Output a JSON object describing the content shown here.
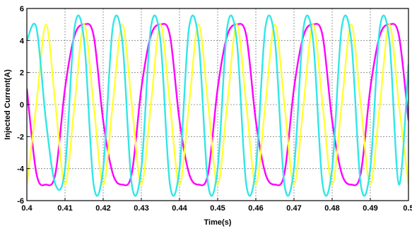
{
  "chart_data": {
    "type": "line",
    "xlabel": "Time(s)",
    "ylabel": "Injected Current(A)",
    "xlim": [
      0.4,
      0.5
    ],
    "ylim": [
      -6,
      6
    ],
    "x_ticks": [
      0.4,
      0.41,
      0.42,
      0.43,
      0.44,
      0.45,
      0.46,
      0.47,
      0.48,
      0.49,
      0.5
    ],
    "x_tick_labels": [
      "0.4",
      "0.41",
      "0.42",
      "0.43",
      "0.44",
      "0.45",
      "0.46",
      "0.47",
      "0.48",
      "0.49",
      "0.5"
    ],
    "y_ticks": [
      -6,
      -4,
      -2,
      0,
      2,
      4,
      6
    ],
    "y_tick_labels": [
      "-6",
      "-4",
      "-2",
      "0",
      "2",
      "4",
      "6"
    ],
    "grid": true,
    "background_color": "#ffffff",
    "series": [
      {
        "color": "#ff00ff",
        "x": [
          0.4,
          0.4025,
          0.405,
          0.4075,
          0.41,
          0.4125,
          0.415,
          0.4175,
          0.42,
          0.4225,
          0.425,
          0.4275,
          0.43,
          0.4325,
          0.435,
          0.4375,
          0.44,
          0.4425,
          0.445,
          0.4475,
          0.45,
          0.4525,
          0.455,
          0.4575,
          0.46,
          0.4625,
          0.465,
          0.4675,
          0.47,
          0.4725,
          0.475,
          0.4775,
          0.48,
          0.4825,
          0.485,
          0.4875,
          0.49,
          0.4925,
          0.495,
          0.4975,
          0.5
        ],
        "y": [
          1.0,
          -4.3,
          -5.0,
          -4.3,
          1.0,
          4.3,
          5.0,
          4.3,
          -1.0,
          -4.3,
          -5.0,
          -4.3,
          1.0,
          4.3,
          5.0,
          4.3,
          -1.0,
          -4.3,
          -5.0,
          -4.3,
          1.0,
          4.3,
          5.0,
          4.3,
          -1.0,
          -4.3,
          -5.0,
          -4.3,
          1.0,
          4.3,
          5.0,
          4.3,
          -1.0,
          -4.3,
          -5.0,
          -4.3,
          1.0,
          4.3,
          5.0,
          4.3,
          -1.0
        ]
      },
      {
        "color": "#ffff33",
        "x": [
          0.4,
          0.4025,
          0.405,
          0.4075,
          0.41,
          0.4125,
          0.415,
          0.4175,
          0.42,
          0.4225,
          0.425,
          0.4275,
          0.43,
          0.4325,
          0.435,
          0.4375,
          0.44,
          0.4425,
          0.445,
          0.4475,
          0.45,
          0.4525,
          0.455,
          0.4575,
          0.46,
          0.4625,
          0.465,
          0.4675,
          0.47,
          0.4725,
          0.475,
          0.4775,
          0.48,
          0.4825,
          0.485,
          0.4875,
          0.49,
          0.4925,
          0.495,
          0.4975,
          0.5
        ],
        "y": [
          -5.0,
          0.0,
          5.0,
          0.0,
          -5.0,
          0.0,
          5.0,
          0.0,
          -5.0,
          0.0,
          5.0,
          0.0,
          -5.0,
          0.0,
          5.0,
          0.0,
          -5.0,
          0.0,
          5.0,
          0.0,
          -5.0,
          0.0,
          5.0,
          0.0,
          -5.0,
          0.0,
          5.0,
          0.0,
          -5.0,
          0.0,
          5.0,
          0.0,
          -5.0,
          0.0,
          5.0,
          0.0,
          -5.0,
          0.0,
          5.0,
          0.0,
          -5.0
        ]
      },
      {
        "color": "#33e6e6",
        "x": [
          0.4,
          0.4025,
          0.405,
          0.4075,
          0.41,
          0.4125,
          0.415,
          0.4175,
          0.42,
          0.4225,
          0.425,
          0.4275,
          0.43,
          0.4325,
          0.435,
          0.4375,
          0.44,
          0.4425,
          0.445,
          0.4475,
          0.45,
          0.4525,
          0.455,
          0.4575,
          0.46,
          0.4625,
          0.465,
          0.4675,
          0.47,
          0.4725,
          0.475,
          0.4775,
          0.48,
          0.4825,
          0.485,
          0.4875,
          0.49,
          0.4925,
          0.495,
          0.4975,
          0.5
        ],
        "y": [
          4.0,
          4.8,
          -1.0,
          -5.0,
          -4.0,
          4.8,
          4.0,
          -5.0,
          -4.0,
          4.8,
          4.0,
          -5.0,
          -4.0,
          4.8,
          4.0,
          -5.0,
          -4.0,
          4.8,
          4.0,
          -5.0,
          -4.0,
          4.8,
          4.0,
          -5.0,
          -4.0,
          4.8,
          4.0,
          -5.0,
          -4.0,
          4.8,
          4.0,
          -5.0,
          -4.0,
          4.8,
          4.0,
          -5.0,
          -4.0,
          4.8,
          4.0,
          -5.0,
          2.5
        ]
      }
    ]
  }
}
